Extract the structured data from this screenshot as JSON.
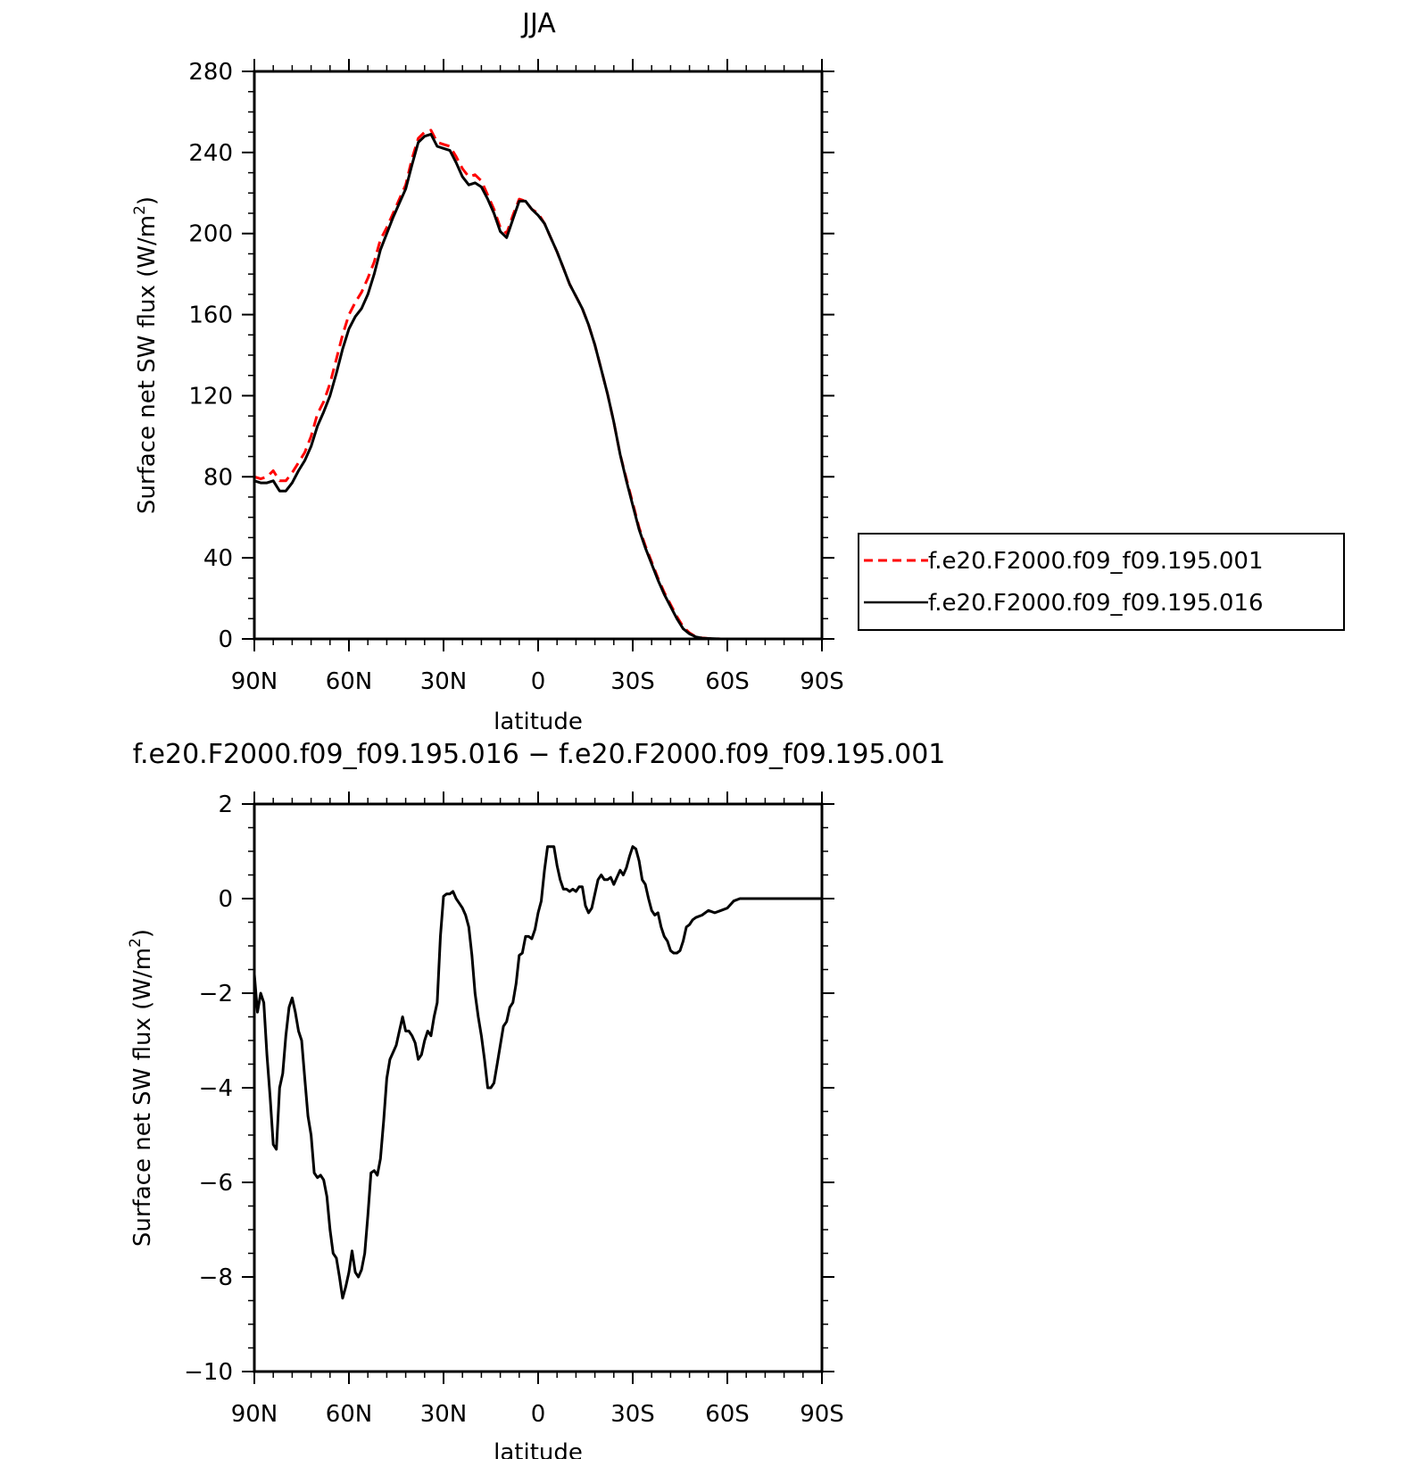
{
  "chart_data": [
    {
      "type": "line",
      "title": "JJA",
      "xlabel": "latitude",
      "ylabel_main": "Surface net SW flux (W/m",
      "ylabel_sup": "2",
      "ylabel_close": ")",
      "xlim": [
        90,
        -90
      ],
      "ylim": [
        0,
        280
      ],
      "yticks": [
        0,
        40,
        80,
        120,
        160,
        200,
        240,
        280
      ],
      "xticks": [
        90,
        60,
        30,
        0,
        -30,
        -60,
        -90
      ],
      "xtick_labels": [
        "90N",
        "60N",
        "30N",
        "0",
        "30S",
        "60S",
        "90S"
      ],
      "ytick_labels": [
        "0",
        "40",
        "80",
        "120",
        "160",
        "200",
        "240",
        "280"
      ],
      "legend_position": "right",
      "series": [
        {
          "name": "f.e20.F2000.f09_f09.195.001",
          "color": "#ff0000",
          "dash": "dashed",
          "x": [
            90,
            88,
            86,
            84,
            82,
            80,
            78,
            76,
            74,
            72,
            70,
            68,
            66,
            64,
            62,
            60,
            58,
            56,
            54,
            52,
            50,
            48,
            46,
            44,
            42,
            40,
            38,
            36,
            34,
            32,
            30,
            28,
            26,
            24,
            22,
            20,
            18,
            16,
            14,
            12,
            10,
            8,
            6,
            4,
            2,
            0,
            -2,
            -4,
            -6,
            -8,
            -10,
            -12,
            -14,
            -16,
            -18,
            -20,
            -22,
            -24,
            -26,
            -28,
            -30,
            -32,
            -34,
            -36,
            -38,
            -40,
            -42,
            -44,
            -46,
            -48,
            -50,
            -52,
            -54,
            -56,
            -58,
            -60,
            -62,
            -64,
            -66,
            -68,
            -70,
            -72,
            -74,
            -76,
            -78,
            -80,
            -82,
            -84,
            -86,
            -88,
            -90
          ],
          "y": [
            80,
            79,
            80,
            83,
            78,
            78,
            82,
            87,
            92,
            100,
            111,
            117,
            126,
            138,
            150,
            160,
            166,
            171,
            178,
            186,
            197,
            203,
            210,
            217,
            224,
            237,
            247,
            250,
            251,
            245,
            244,
            243,
            238,
            232,
            228,
            229,
            226,
            219,
            212,
            203,
            200,
            209,
            217,
            216,
            212,
            210,
            205,
            198,
            191,
            183,
            175,
            169,
            163,
            155,
            145,
            133,
            121,
            107,
            91,
            79,
            67,
            55,
            46,
            38,
            30,
            23,
            17,
            11,
            6,
            3,
            1,
            0.5,
            0.2,
            0.1,
            0,
            0,
            0,
            0,
            0,
            0,
            0,
            0,
            0,
            0,
            0,
            0,
            0,
            0,
            0,
            0,
            0
          ]
        },
        {
          "name": "f.e20.F2000.f09_f09.195.016",
          "color": "#000000",
          "dash": "solid",
          "x": [
            90,
            88,
            86,
            84,
            82,
            80,
            78,
            76,
            74,
            72,
            70,
            68,
            66,
            64,
            62,
            60,
            58,
            56,
            54,
            52,
            50,
            48,
            46,
            44,
            42,
            40,
            38,
            36,
            34,
            32,
            30,
            28,
            26,
            24,
            22,
            20,
            18,
            16,
            14,
            12,
            10,
            8,
            6,
            4,
            2,
            0,
            -2,
            -4,
            -6,
            -8,
            -10,
            -12,
            -14,
            -16,
            -18,
            -20,
            -22,
            -24,
            -26,
            -28,
            -30,
            -32,
            -34,
            -36,
            -38,
            -40,
            -42,
            -44,
            -46,
            -48,
            -50,
            -52,
            -54,
            -56,
            -58,
            -60,
            -62,
            -64,
            -66,
            -68,
            -70,
            -72,
            -74,
            -76,
            -78,
            -80,
            -82,
            -84,
            -86,
            -88,
            -90
          ],
          "y": [
            78,
            77,
            77,
            78,
            73,
            73,
            77,
            83,
            88,
            95,
            105,
            112,
            120,
            131,
            143,
            153,
            159,
            163,
            170,
            180,
            192,
            200,
            208,
            215,
            222,
            234,
            245,
            248,
            249,
            243,
            242,
            241,
            235,
            228,
            224,
            225,
            223,
            217,
            210,
            201,
            198,
            207,
            216,
            216,
            212,
            209,
            205,
            198,
            191,
            183,
            175,
            169,
            163,
            155,
            145,
            133,
            121,
            107,
            91,
            78,
            66,
            54,
            45,
            37,
            29,
            22,
            16,
            10,
            5,
            2.5,
            1,
            0.4,
            0.2,
            0.1,
            0,
            0,
            0,
            0,
            0,
            0,
            0,
            0,
            0,
            0,
            0,
            0,
            0,
            0,
            0,
            0,
            0
          ]
        }
      ]
    },
    {
      "type": "line",
      "title": "f.e20.F2000.f09_f09.195.016 − f.e20.F2000.f09_f09.195.001",
      "xlabel": "latitude",
      "ylabel_main": "Surface net SW flux (W/m",
      "ylabel_sup": "2",
      "ylabel_close": ")",
      "xlim": [
        90,
        -90
      ],
      "ylim": [
        -10,
        2
      ],
      "yticks": [
        -10,
        -8,
        -6,
        -4,
        -2,
        0,
        2
      ],
      "xticks": [
        90,
        60,
        30,
        0,
        -30,
        -60,
        -90
      ],
      "xtick_labels": [
        "90N",
        "60N",
        "30N",
        "0",
        "30S",
        "60S",
        "90S"
      ],
      "ytick_labels": [
        "−10",
        "−8",
        "−6",
        "−4",
        "−2",
        "0",
        "2"
      ],
      "series": [
        {
          "color": "#000000",
          "dash": "solid",
          "x": [
            90,
            89,
            88,
            87,
            86,
            85,
            84,
            83,
            82,
            81,
            80,
            79,
            78,
            77,
            76,
            75,
            74,
            73,
            72,
            71,
            70,
            69,
            68,
            67,
            66,
            65,
            64,
            63,
            62,
            61,
            60,
            59,
            58,
            57,
            56,
            55,
            54,
            53,
            52,
            51,
            50,
            49,
            48,
            47,
            46,
            45,
            44,
            43,
            42,
            41,
            40,
            39,
            38,
            37,
            36,
            35,
            34,
            33,
            32,
            31,
            30,
            29,
            28,
            27,
            26,
            25,
            24,
            23,
            22,
            21,
            20,
            19,
            18,
            17,
            16,
            15,
            14,
            13,
            12,
            11,
            10,
            9,
            8,
            7,
            6,
            5,
            4,
            3,
            2,
            1,
            0,
            -1,
            -2,
            -3,
            -4,
            -5,
            -6,
            -7,
            -8,
            -9,
            -10,
            -11,
            -12,
            -13,
            -14,
            -15,
            -16,
            -17,
            -18,
            -19,
            -20,
            -21,
            -22,
            -23,
            -24,
            -25,
            -26,
            -27,
            -28,
            -29,
            -30,
            -31,
            -32,
            -33,
            -34,
            -35,
            -36,
            -37,
            -38,
            -39,
            -40,
            -41,
            -42,
            -43,
            -44,
            -45,
            -46,
            -47,
            -48,
            -49,
            -50,
            -52,
            -54,
            -56,
            -58,
            -60,
            -62,
            -64,
            -66,
            -68,
            -70,
            -75,
            -80,
            -85,
            -90
          ],
          "y": [
            -1.6,
            -2.4,
            -2.0,
            -2.2,
            -3.3,
            -4.2,
            -5.2,
            -5.3,
            -4.0,
            -3.7,
            -2.9,
            -2.3,
            -2.1,
            -2.4,
            -2.8,
            -3.0,
            -3.8,
            -4.6,
            -5.0,
            -5.8,
            -5.9,
            -5.85,
            -5.95,
            -6.3,
            -7.0,
            -7.5,
            -7.6,
            -8.0,
            -8.45,
            -8.2,
            -7.9,
            -7.45,
            -7.9,
            -8.0,
            -7.85,
            -7.5,
            -6.7,
            -5.8,
            -5.75,
            -5.85,
            -5.5,
            -4.7,
            -3.8,
            -3.4,
            -3.25,
            -3.1,
            -2.8,
            -2.5,
            -2.8,
            -2.8,
            -2.9,
            -3.05,
            -3.4,
            -3.3,
            -3.0,
            -2.8,
            -2.9,
            -2.5,
            -2.2,
            -0.8,
            0.05,
            0.1,
            0.1,
            0.15,
            0.0,
            -0.1,
            -0.2,
            -0.35,
            -0.6,
            -1.2,
            -2.0,
            -2.5,
            -2.9,
            -3.4,
            -4.0,
            -4.0,
            -3.9,
            -3.5,
            -3.1,
            -2.7,
            -2.6,
            -2.3,
            -2.2,
            -1.8,
            -1.2,
            -1.15,
            -0.8,
            -0.8,
            -0.85,
            -0.65,
            -0.3,
            -0.05,
            0.6,
            1.1,
            1.1,
            1.1,
            0.7,
            0.4,
            0.2,
            0.2,
            0.15,
            0.2,
            0.15,
            0.25,
            0.25,
            -0.15,
            -0.3,
            -0.2,
            0.1,
            0.4,
            0.5,
            0.4,
            0.4,
            0.45,
            0.3,
            0.45,
            0.6,
            0.5,
            0.65,
            0.9,
            1.1,
            1.05,
            0.8,
            0.4,
            0.3,
            0.0,
            -0.25,
            -0.35,
            -0.3,
            -0.6,
            -0.8,
            -0.9,
            -1.1,
            -1.15,
            -1.15,
            -1.1,
            -0.9,
            -0.6,
            -0.55,
            -0.45,
            -0.4,
            -0.35,
            -0.25,
            -0.3,
            -0.25,
            -0.2,
            -0.05,
            0.0,
            0.0,
            0.0,
            0.0,
            0.0,
            0.0,
            0.0,
            0.0
          ]
        }
      ]
    }
  ]
}
